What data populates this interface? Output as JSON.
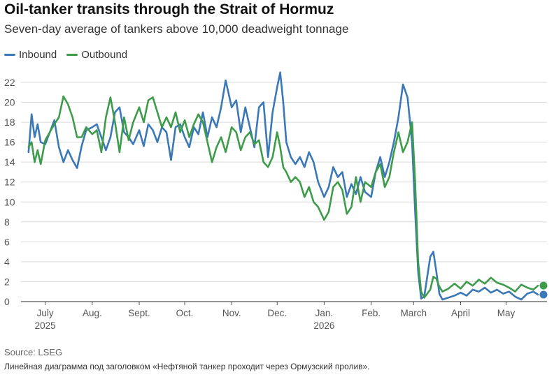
{
  "colors": {
    "inbound": "#3a78b7",
    "outbound": "#3d9c4a",
    "grid": "#d9d9d9",
    "axis": "#555555"
  },
  "source_text": "Source: LSEG",
  "note_text": "Линейная диаграмма под заголовком «Нефтяной танкер проходит через Ормузский пролив».",
  "chart_data": {
    "type": "line",
    "title": "Oil-tanker transits through the Strait of Hormuz",
    "subtitle": "Seven-day average of tankers above 10,000 deadweight tonnage",
    "xlabel": "",
    "ylabel": "",
    "ylim": [
      0,
      22
    ],
    "yticks": [
      0,
      2,
      4,
      6,
      8,
      10,
      12,
      14,
      16,
      18,
      20,
      22
    ],
    "xlim": [
      "2025-06-15",
      "2026-05-28"
    ],
    "xticks": [
      {
        "date": "2025-07-01",
        "label": "July",
        "sublabel": "2025"
      },
      {
        "date": "2025-08-01",
        "label": "Aug.",
        "sublabel": ""
      },
      {
        "date": "2025-09-01",
        "label": "Sept.",
        "sublabel": ""
      },
      {
        "date": "2025-10-01",
        "label": "Oct.",
        "sublabel": ""
      },
      {
        "date": "2025-11-01",
        "label": "Nov.",
        "sublabel": ""
      },
      {
        "date": "2025-12-01",
        "label": "Dec.",
        "sublabel": ""
      },
      {
        "date": "2026-01-01",
        "label": "Jan.",
        "sublabel": "2026"
      },
      {
        "date": "2026-02-01",
        "label": "Feb.",
        "sublabel": ""
      },
      {
        "date": "2026-03-01",
        "label": "March",
        "sublabel": ""
      },
      {
        "date": "2026-04-01",
        "label": "April",
        "sublabel": ""
      },
      {
        "date": "2026-05-01",
        "label": "May",
        "sublabel": ""
      }
    ],
    "grid": true,
    "legend_position": "top-left",
    "series": [
      {
        "name": "Inbound",
        "color": "#3a78b7",
        "points": [
          [
            "2025-06-20",
            15.0
          ],
          [
            "2025-06-22",
            18.8
          ],
          [
            "2025-06-24",
            16.5
          ],
          [
            "2025-06-26",
            17.8
          ],
          [
            "2025-06-28",
            16.0
          ],
          [
            "2025-07-01",
            15.8
          ],
          [
            "2025-07-04",
            17.0
          ],
          [
            "2025-07-07",
            18.2
          ],
          [
            "2025-07-10",
            15.5
          ],
          [
            "2025-07-13",
            14.0
          ],
          [
            "2025-07-16",
            15.2
          ],
          [
            "2025-07-19",
            14.2
          ],
          [
            "2025-07-22",
            13.4
          ],
          [
            "2025-07-25",
            15.6
          ],
          [
            "2025-07-28",
            17.2
          ],
          [
            "2025-08-01",
            17.5
          ],
          [
            "2025-08-04",
            17.8
          ],
          [
            "2025-08-07",
            16.5
          ],
          [
            "2025-08-10",
            15.2
          ],
          [
            "2025-08-13",
            16.5
          ],
          [
            "2025-08-16",
            19.0
          ],
          [
            "2025-08-19",
            19.5
          ],
          [
            "2025-08-22",
            17.0
          ],
          [
            "2025-08-25",
            16.5
          ],
          [
            "2025-08-28",
            15.8
          ],
          [
            "2025-09-01",
            17.2
          ],
          [
            "2025-09-04",
            15.6
          ],
          [
            "2025-09-07",
            17.8
          ],
          [
            "2025-09-10",
            17.2
          ],
          [
            "2025-09-13",
            16.0
          ],
          [
            "2025-09-16",
            17.5
          ],
          [
            "2025-09-19",
            17.0
          ],
          [
            "2025-09-22",
            14.2
          ],
          [
            "2025-09-25",
            17.5
          ],
          [
            "2025-09-28",
            17.8
          ],
          [
            "2025-10-01",
            16.5
          ],
          [
            "2025-10-04",
            15.5
          ],
          [
            "2025-10-07",
            17.5
          ],
          [
            "2025-10-10",
            16.8
          ],
          [
            "2025-10-13",
            19.0
          ],
          [
            "2025-10-16",
            16.5
          ],
          [
            "2025-10-19",
            18.5
          ],
          [
            "2025-10-22",
            17.5
          ],
          [
            "2025-10-25",
            19.5
          ],
          [
            "2025-10-28",
            22.2
          ],
          [
            "2025-11-01",
            19.5
          ],
          [
            "2025-11-04",
            20.2
          ],
          [
            "2025-11-07",
            17.0
          ],
          [
            "2025-11-10",
            19.5
          ],
          [
            "2025-11-13",
            17.5
          ],
          [
            "2025-11-16",
            15.5
          ],
          [
            "2025-11-19",
            19.5
          ],
          [
            "2025-11-22",
            20.0
          ],
          [
            "2025-11-25",
            14.5
          ],
          [
            "2025-11-28",
            19.0
          ],
          [
            "2025-12-01",
            21.5
          ],
          [
            "2025-12-03",
            23.0
          ],
          [
            "2025-12-05",
            20.0
          ],
          [
            "2025-12-07",
            16.0
          ],
          [
            "2025-12-10",
            14.5
          ],
          [
            "2025-12-13",
            13.8
          ],
          [
            "2025-12-16",
            14.5
          ],
          [
            "2025-12-19",
            13.5
          ],
          [
            "2025-12-22",
            15.0
          ],
          [
            "2025-12-25",
            14.0
          ],
          [
            "2025-12-28",
            12.0
          ],
          [
            "2026-01-01",
            10.5
          ],
          [
            "2026-01-04",
            11.5
          ],
          [
            "2026-01-07",
            13.5
          ],
          [
            "2026-01-10",
            12.5
          ],
          [
            "2026-01-13",
            13.0
          ],
          [
            "2026-01-16",
            10.5
          ],
          [
            "2026-01-19",
            11.8
          ],
          [
            "2026-01-22",
            10.8
          ],
          [
            "2026-01-25",
            12.5
          ],
          [
            "2026-01-28",
            11.0
          ],
          [
            "2026-02-01",
            10.5
          ],
          [
            "2026-02-04",
            13.0
          ],
          [
            "2026-02-07",
            14.5
          ],
          [
            "2026-02-10",
            12.5
          ],
          [
            "2026-02-13",
            14.0
          ],
          [
            "2026-02-16",
            16.0
          ],
          [
            "2026-02-19",
            18.5
          ],
          [
            "2026-02-22",
            21.8
          ],
          [
            "2026-02-25",
            20.5
          ],
          [
            "2026-02-28",
            16.0
          ],
          [
            "2026-03-02",
            9.0
          ],
          [
            "2026-03-04",
            3.0
          ],
          [
            "2026-03-06",
            0.3
          ],
          [
            "2026-03-08",
            0.5
          ],
          [
            "2026-03-10",
            2.5
          ],
          [
            "2026-03-12",
            4.5
          ],
          [
            "2026-03-14",
            5.0
          ],
          [
            "2026-03-16",
            3.0
          ],
          [
            "2026-03-18",
            0.8
          ],
          [
            "2026-03-20",
            0.2
          ],
          [
            "2026-03-24",
            0.4
          ],
          [
            "2026-03-28",
            0.6
          ],
          [
            "2026-04-01",
            0.9
          ],
          [
            "2026-04-05",
            0.6
          ],
          [
            "2026-04-09",
            1.2
          ],
          [
            "2026-04-13",
            1.0
          ],
          [
            "2026-04-17",
            1.4
          ],
          [
            "2026-04-21",
            0.9
          ],
          [
            "2026-04-25",
            1.2
          ],
          [
            "2026-04-29",
            0.8
          ],
          [
            "2026-05-03",
            1.0
          ],
          [
            "2026-05-07",
            0.5
          ],
          [
            "2026-05-11",
            0.2
          ],
          [
            "2026-05-15",
            0.8
          ],
          [
            "2026-05-19",
            1.0
          ],
          [
            "2026-05-22",
            0.7
          ]
        ]
      },
      {
        "name": "Outbound",
        "color": "#3d9c4a",
        "points": [
          [
            "2025-06-20",
            15.5
          ],
          [
            "2025-06-22",
            16.0
          ],
          [
            "2025-06-24",
            14.0
          ],
          [
            "2025-06-26",
            15.2
          ],
          [
            "2025-06-28",
            13.8
          ],
          [
            "2025-07-01",
            16.2
          ],
          [
            "2025-07-04",
            17.0
          ],
          [
            "2025-07-07",
            17.8
          ],
          [
            "2025-07-10",
            18.5
          ],
          [
            "2025-07-13",
            20.6
          ],
          [
            "2025-07-16",
            19.8
          ],
          [
            "2025-07-19",
            18.5
          ],
          [
            "2025-07-22",
            16.5
          ],
          [
            "2025-07-25",
            16.5
          ],
          [
            "2025-07-28",
            17.5
          ],
          [
            "2025-08-01",
            16.8
          ],
          [
            "2025-08-04",
            17.2
          ],
          [
            "2025-08-07",
            15.0
          ],
          [
            "2025-08-10",
            18.5
          ],
          [
            "2025-08-13",
            20.5
          ],
          [
            "2025-08-16",
            18.0
          ],
          [
            "2025-08-19",
            15.0
          ],
          [
            "2025-08-22",
            18.5
          ],
          [
            "2025-08-25",
            16.2
          ],
          [
            "2025-08-28",
            18.0
          ],
          [
            "2025-09-01",
            19.5
          ],
          [
            "2025-09-04",
            18.0
          ],
          [
            "2025-09-07",
            20.2
          ],
          [
            "2025-09-10",
            20.5
          ],
          [
            "2025-09-13",
            19.0
          ],
          [
            "2025-09-16",
            17.5
          ],
          [
            "2025-09-19",
            18.5
          ],
          [
            "2025-09-22",
            17.5
          ],
          [
            "2025-09-25",
            19.0
          ],
          [
            "2025-09-28",
            17.0
          ],
          [
            "2025-10-01",
            18.2
          ],
          [
            "2025-10-04",
            16.5
          ],
          [
            "2025-10-07",
            17.8
          ],
          [
            "2025-10-10",
            18.8
          ],
          [
            "2025-10-13",
            18.0
          ],
          [
            "2025-10-16",
            16.0
          ],
          [
            "2025-10-19",
            14.0
          ],
          [
            "2025-10-22",
            15.5
          ],
          [
            "2025-10-25",
            16.5
          ],
          [
            "2025-10-28",
            15.0
          ],
          [
            "2025-11-01",
            17.5
          ],
          [
            "2025-11-04",
            17.0
          ],
          [
            "2025-11-07",
            15.2
          ],
          [
            "2025-11-10",
            16.5
          ],
          [
            "2025-11-13",
            17.0
          ],
          [
            "2025-11-16",
            15.8
          ],
          [
            "2025-11-19",
            16.2
          ],
          [
            "2025-11-22",
            14.0
          ],
          [
            "2025-11-25",
            13.5
          ],
          [
            "2025-11-28",
            14.5
          ],
          [
            "2025-12-01",
            17.0
          ],
          [
            "2025-12-03",
            15.5
          ],
          [
            "2025-12-05",
            13.5
          ],
          [
            "2025-12-07",
            13.0
          ],
          [
            "2025-12-10",
            12.0
          ],
          [
            "2025-12-13",
            12.5
          ],
          [
            "2025-12-16",
            12.0
          ],
          [
            "2025-12-19",
            10.5
          ],
          [
            "2025-12-22",
            11.5
          ],
          [
            "2025-12-25",
            10.0
          ],
          [
            "2025-12-28",
            9.5
          ],
          [
            "2026-01-01",
            8.2
          ],
          [
            "2026-01-04",
            9.0
          ],
          [
            "2026-01-07",
            11.5
          ],
          [
            "2026-01-10",
            12.0
          ],
          [
            "2026-01-13",
            11.2
          ],
          [
            "2026-01-16",
            8.8
          ],
          [
            "2026-01-19",
            9.5
          ],
          [
            "2026-01-22",
            12.5
          ],
          [
            "2026-01-25",
            10.0
          ],
          [
            "2026-01-28",
            12.0
          ],
          [
            "2026-02-01",
            11.5
          ],
          [
            "2026-02-04",
            13.0
          ],
          [
            "2026-02-07",
            13.8
          ],
          [
            "2026-02-10",
            11.5
          ],
          [
            "2026-02-13",
            12.5
          ],
          [
            "2026-02-16",
            15.0
          ],
          [
            "2026-02-19",
            17.0
          ],
          [
            "2026-02-22",
            15.0
          ],
          [
            "2026-02-25",
            16.0
          ],
          [
            "2026-02-28",
            18.0
          ],
          [
            "2026-03-02",
            12.0
          ],
          [
            "2026-03-04",
            4.0
          ],
          [
            "2026-03-06",
            1.0
          ],
          [
            "2026-03-08",
            0.4
          ],
          [
            "2026-03-10",
            0.8
          ],
          [
            "2026-03-12",
            1.2
          ],
          [
            "2026-03-14",
            2.5
          ],
          [
            "2026-03-16",
            2.3
          ],
          [
            "2026-03-18",
            1.5
          ],
          [
            "2026-03-20",
            1.0
          ],
          [
            "2026-03-24",
            1.3
          ],
          [
            "2026-03-28",
            1.8
          ],
          [
            "2026-04-01",
            1.3
          ],
          [
            "2026-04-05",
            2.0
          ],
          [
            "2026-04-09",
            1.6
          ],
          [
            "2026-04-13",
            2.2
          ],
          [
            "2026-04-17",
            1.8
          ],
          [
            "2026-04-21",
            2.4
          ],
          [
            "2026-04-25",
            1.9
          ],
          [
            "2026-04-29",
            1.7
          ],
          [
            "2026-05-03",
            1.4
          ],
          [
            "2026-05-07",
            1.0
          ],
          [
            "2026-05-11",
            1.7
          ],
          [
            "2026-05-15",
            1.4
          ],
          [
            "2026-05-19",
            1.2
          ],
          [
            "2026-05-22",
            1.6
          ]
        ]
      }
    ]
  }
}
